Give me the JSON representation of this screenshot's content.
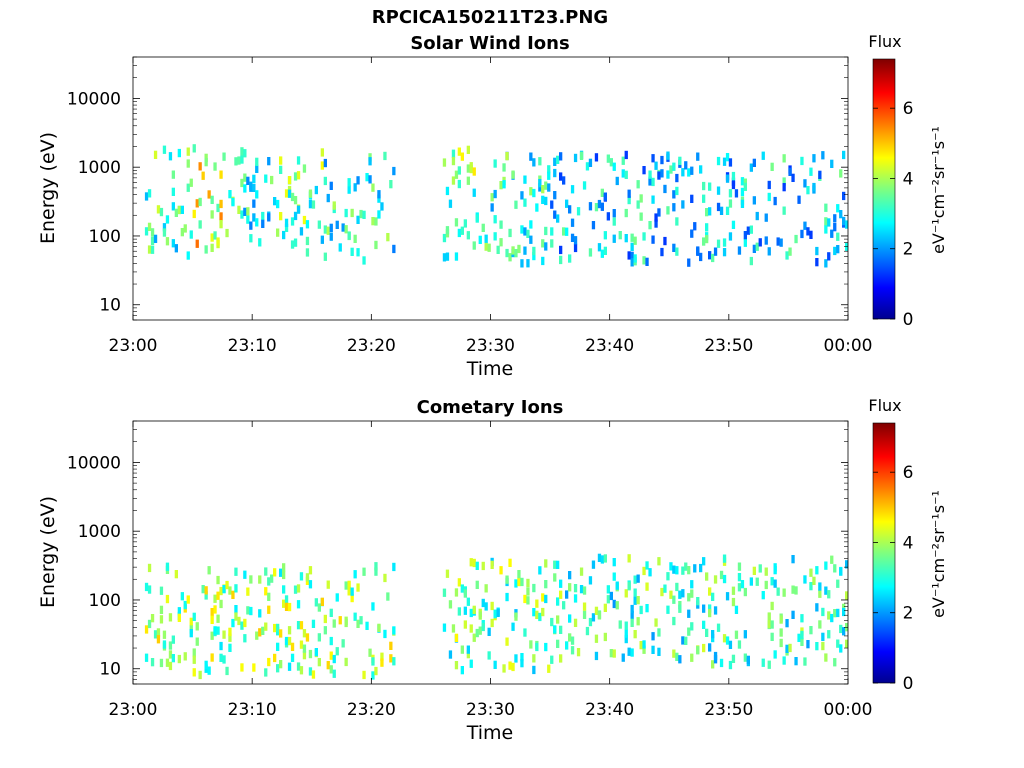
{
  "figure": {
    "filename": "RPCICA150211T23.PNG"
  },
  "chart_data": [
    {
      "type": "heatmap",
      "title": "Solar Wind Ions",
      "xlabel": "Time",
      "ylabel": "Energy (eV)",
      "x_range": [
        "23:00",
        "00:00"
      ],
      "x_ticks": [
        "23:00",
        "23:10",
        "23:20",
        "23:30",
        "23:40",
        "23:50",
        "00:00"
      ],
      "y_scale": "log",
      "y_range": [
        6,
        40000
      ],
      "y_ticks": [
        "10",
        "100",
        "1000",
        "10000"
      ],
      "y_tick_values": [
        10,
        100,
        1000,
        10000
      ],
      "colorbar": {
        "label": "Flux",
        "unit": "eV⁻¹cm⁻²sr⁻¹s⁻¹",
        "range": [
          0,
          7.4
        ],
        "ticks": [
          "0",
          "2",
          "4",
          "6"
        ],
        "tick_values": [
          0,
          2,
          4,
          6
        ]
      },
      "segments": [
        {
          "t_start": "23:01",
          "t_end": "23:05",
          "e_center": 300,
          "flux": 3.2
        },
        {
          "t_start": "23:05",
          "t_end": "23:08",
          "e_center": 350,
          "flux": 4.5
        },
        {
          "t_start": "23:08",
          "t_end": "23:12",
          "e_center": 280,
          "flux": 3.0
        },
        {
          "t_start": "23:12",
          "t_end": "23:16",
          "e_center": 300,
          "flux": 3.4
        },
        {
          "t_start": "23:16",
          "t_end": "23:22",
          "e_center": 250,
          "flux": 3.0
        },
        {
          "t_start": "23:26",
          "t_end": "23:30",
          "e_center": 300,
          "flux": 3.6
        },
        {
          "t_start": "23:30",
          "t_end": "23:35",
          "e_center": 250,
          "flux": 3.0
        },
        {
          "t_start": "23:35",
          "t_end": "00:00",
          "e_center": 250,
          "flux": 2.5
        }
      ]
    },
    {
      "type": "heatmap",
      "title": "Cometary Ions",
      "xlabel": "Time",
      "ylabel": "Energy (eV)",
      "x_range": [
        "23:00",
        "00:00"
      ],
      "x_ticks": [
        "23:00",
        "23:10",
        "23:20",
        "23:30",
        "23:40",
        "23:50",
        "00:00"
      ],
      "y_scale": "log",
      "y_range": [
        6,
        40000
      ],
      "y_ticks": [
        "10",
        "100",
        "1000",
        "10000"
      ],
      "y_tick_values": [
        10,
        100,
        1000,
        10000
      ],
      "colorbar": {
        "label": "Flux",
        "unit": "eV⁻¹cm⁻²sr⁻¹s⁻¹",
        "range": [
          0,
          7.4
        ],
        "ticks": [
          "0",
          "2",
          "4",
          "6"
        ],
        "tick_values": [
          0,
          2,
          4,
          6
        ]
      },
      "segments": [
        {
          "t_start": "23:01",
          "t_end": "23:22",
          "e_center": 50,
          "flux": 3.8
        },
        {
          "t_start": "23:26",
          "t_end": "23:35",
          "e_center": 60,
          "flux": 3.5
        },
        {
          "t_start": "23:35",
          "t_end": "00:00",
          "e_center": 70,
          "flux": 3.2
        }
      ]
    }
  ]
}
